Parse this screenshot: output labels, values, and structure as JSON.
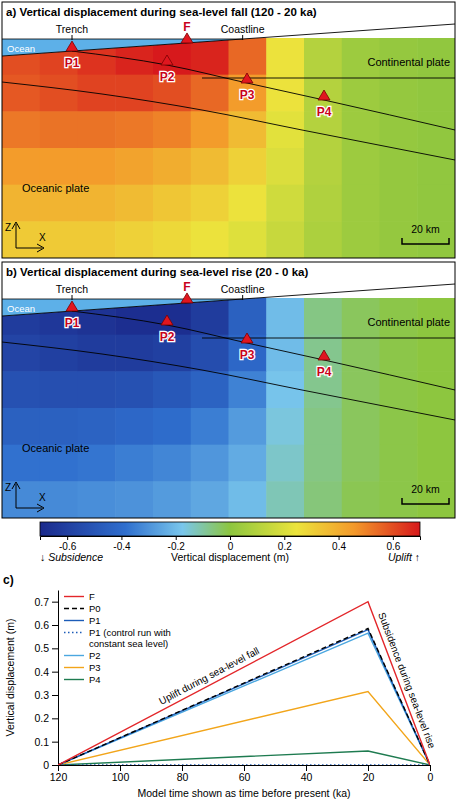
{
  "chart_data": [
    {
      "type": "heatmap",
      "title": "a) Vertical displacement during sea-level fall (120 - 20 ka)",
      "cells": [
        [
          0.6,
          0.62,
          0.65,
          0.68,
          0.7,
          0.68,
          0.55,
          0.25,
          0.1,
          0.04,
          0.02,
          0.01
        ],
        [
          0.58,
          0.6,
          0.62,
          0.62,
          0.6,
          0.55,
          0.45,
          0.25,
          0.1,
          0.04,
          0.02,
          0.01
        ],
        [
          0.52,
          0.53,
          0.53,
          0.52,
          0.5,
          0.45,
          0.36,
          0.22,
          0.1,
          0.04,
          0.02,
          0.01
        ],
        [
          0.45,
          0.45,
          0.45,
          0.43,
          0.4,
          0.36,
          0.3,
          0.2,
          0.1,
          0.04,
          0.02,
          0.01
        ],
        [
          0.38,
          0.38,
          0.38,
          0.36,
          0.33,
          0.3,
          0.25,
          0.17,
          0.09,
          0.04,
          0.02,
          0.01
        ],
        [
          0.32,
          0.32,
          0.32,
          0.3,
          0.28,
          0.25,
          0.21,
          0.15,
          0.08,
          0.04,
          0.02,
          0.01
        ]
      ],
      "labels": {
        "trench": "Trench",
        "coastline": "Coastline",
        "f": "F",
        "ocean": "Ocean",
        "continental": "Continental plate",
        "oceanic": "Oceanic plate",
        "points": [
          "P1",
          "P2",
          "P3",
          "P4"
        ],
        "scale": "20 km",
        "z": "Z",
        "x": "X"
      }
    },
    {
      "type": "heatmap",
      "title": "b) Vertical displacement during sea-level rise (20 - 0 ka)",
      "cells": [
        [
          -0.62,
          -0.64,
          -0.66,
          -0.68,
          -0.68,
          -0.62,
          -0.45,
          -0.2,
          -0.07,
          -0.03,
          -0.01,
          0
        ],
        [
          -0.58,
          -0.6,
          -0.62,
          -0.62,
          -0.6,
          -0.54,
          -0.42,
          -0.2,
          -0.08,
          -0.03,
          -0.01,
          0
        ],
        [
          -0.52,
          -0.53,
          -0.53,
          -0.52,
          -0.49,
          -0.44,
          -0.34,
          -0.18,
          -0.08,
          -0.03,
          -0.01,
          0
        ],
        [
          -0.45,
          -0.45,
          -0.44,
          -0.42,
          -0.4,
          -0.35,
          -0.28,
          -0.16,
          -0.07,
          -0.03,
          -0.01,
          0
        ],
        [
          -0.38,
          -0.38,
          -0.37,
          -0.35,
          -0.33,
          -0.29,
          -0.24,
          -0.14,
          -0.07,
          -0.03,
          -0.01,
          0
        ],
        [
          -0.32,
          -0.32,
          -0.31,
          -0.3,
          -0.28,
          -0.25,
          -0.2,
          -0.12,
          -0.06,
          -0.02,
          -0.01,
          0
        ]
      ],
      "labels": {
        "trench": "Trench",
        "coastline": "Coastline",
        "f": "F",
        "ocean": "Ocean",
        "continental": "Continental plate",
        "oceanic": "Oceanic plate",
        "points": [
          "P1",
          "P2",
          "P3",
          "P4"
        ],
        "scale": "20 km",
        "z": "Z",
        "x": "X"
      },
      "colorbar": {
        "range": [
          -0.7,
          0.7
        ],
        "ticks": [
          -0.6,
          -0.4,
          -0.2,
          0,
          0.2,
          0.4,
          0.6
        ],
        "label": "Vertical displacement (m)",
        "low_label": "↓ Subsidence",
        "high_label": "Uplift ↑"
      }
    },
    {
      "type": "line",
      "title": "c)",
      "x": [
        120,
        20,
        0
      ],
      "xlim": [
        120,
        0
      ],
      "xticks": [
        120,
        100,
        80,
        60,
        40,
        20,
        0
      ],
      "ylim": [
        0,
        0.75
      ],
      "yticks": [
        0,
        0.1,
        0.2,
        0.3,
        0.4,
        0.5,
        0.6,
        0.7
      ],
      "xlabel": "Model time shown as time before present (ka)",
      "ylabel": "Vertical displacement (m)",
      "legend": "upper left",
      "series": [
        {
          "name": "F",
          "color": "#e3262a",
          "line_style": "solid",
          "values": [
            0,
            0.7,
            0
          ]
        },
        {
          "name": "P0",
          "color": "#000000",
          "line_style": "dashed",
          "values": [
            0,
            0.585,
            0
          ]
        },
        {
          "name": "P1",
          "color": "#1c5cb8",
          "line_style": "solid",
          "values": [
            0,
            0.58,
            0
          ]
        },
        {
          "name": "P1 (control run with constant sea level)",
          "color": "#1c5cb8",
          "line_style": "dotted",
          "values": [
            0,
            0,
            0
          ]
        },
        {
          "name": "P2",
          "color": "#4ba7e0",
          "line_style": "solid",
          "values": [
            0,
            0.565,
            0
          ]
        },
        {
          "name": "P3",
          "color": "#f2a51a",
          "line_style": "solid",
          "values": [
            0,
            0.315,
            0
          ]
        },
        {
          "name": "P4",
          "color": "#1e7b50",
          "line_style": "solid",
          "values": [
            0,
            0.06,
            0
          ]
        }
      ],
      "annotations": [
        "Uplift during sea-level fall",
        "Subsidence during sea-level rise"
      ]
    }
  ]
}
